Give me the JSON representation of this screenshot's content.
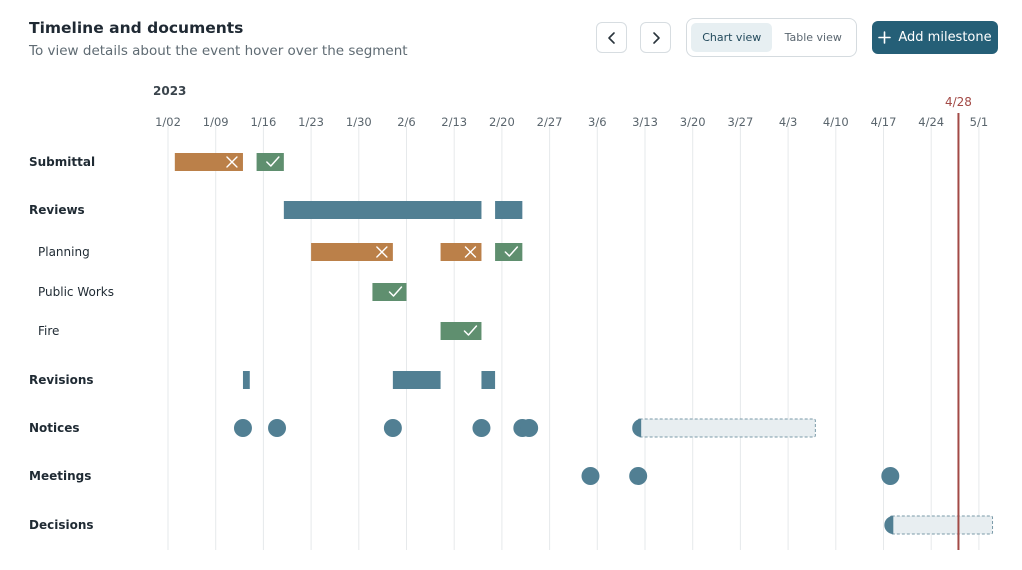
{
  "header": {
    "title": "Timeline and documents",
    "subtitle": "To view details about the event hover over the segment"
  },
  "toolbar": {
    "prev_icon": "chevron-left-icon",
    "next_icon": "chevron-right-icon",
    "views": [
      {
        "label": "Chart view",
        "active": true
      },
      {
        "label": "Table view",
        "active": false
      }
    ],
    "add_icon": "plus-icon",
    "add_label": "Add milestone"
  },
  "colors": {
    "rejected": "#bb8049",
    "approved": "#5f8f6f",
    "neutral": "#517f93",
    "pending_fill": "#e8eef1",
    "pending_border": "#7a9aa8",
    "today": "#a34a46",
    "grid": "#e6e9eb"
  },
  "chart_data": {
    "type": "timeline",
    "year_label": "2023",
    "ticks": [
      "1/02",
      "1/09",
      "1/16",
      "1/23",
      "1/30",
      "2/6",
      "2/13",
      "2/20",
      "2/27",
      "3/6",
      "3/13",
      "3/20",
      "3/27",
      "4/3",
      "4/10",
      "4/17",
      "4/24",
      "5/1"
    ],
    "tick_dates": [
      "2023-01-02",
      "2023-01-09",
      "2023-01-16",
      "2023-01-23",
      "2023-01-30",
      "2023-02-06",
      "2023-02-13",
      "2023-02-20",
      "2023-02-27",
      "2023-03-06",
      "2023-03-13",
      "2023-03-20",
      "2023-03-27",
      "2023-04-03",
      "2023-04-10",
      "2023-04-17",
      "2023-04-24",
      "2023-05-01"
    ],
    "today": {
      "label": "4/28",
      "date": "2023-04-28"
    },
    "rows": [
      {
        "label": "Submittal",
        "bold": true,
        "indent": false,
        "items": [
          {
            "kind": "bar",
            "status": "rejected",
            "start": "2023-01-03",
            "end": "2023-01-13"
          },
          {
            "kind": "bar",
            "status": "approved",
            "start": "2023-01-15",
            "end": "2023-01-19"
          }
        ]
      },
      {
        "label": "Reviews",
        "bold": true,
        "indent": false,
        "items": [
          {
            "kind": "bar",
            "status": "neutral",
            "start": "2023-01-19",
            "end": "2023-02-17"
          },
          {
            "kind": "bar",
            "status": "neutral",
            "start": "2023-02-19",
            "end": "2023-02-23"
          }
        ]
      },
      {
        "label": "Planning",
        "bold": false,
        "indent": true,
        "items": [
          {
            "kind": "bar",
            "status": "rejected",
            "start": "2023-01-23",
            "end": "2023-02-04"
          },
          {
            "kind": "bar",
            "status": "rejected",
            "start": "2023-02-11",
            "end": "2023-02-17"
          },
          {
            "kind": "bar",
            "status": "approved",
            "start": "2023-02-19",
            "end": "2023-02-23"
          }
        ]
      },
      {
        "label": "Public Works",
        "bold": false,
        "indent": true,
        "items": [
          {
            "kind": "bar",
            "status": "approved",
            "start": "2023-02-01",
            "end": "2023-02-06"
          }
        ]
      },
      {
        "label": "Fire",
        "bold": false,
        "indent": true,
        "items": [
          {
            "kind": "bar",
            "status": "approved",
            "start": "2023-02-11",
            "end": "2023-02-17"
          }
        ]
      },
      {
        "label": "Revisions",
        "bold": true,
        "indent": false,
        "items": [
          {
            "kind": "bar",
            "status": "neutral",
            "start": "2023-01-13",
            "end": "2023-01-14"
          },
          {
            "kind": "bar",
            "status": "neutral",
            "start": "2023-02-04",
            "end": "2023-02-11"
          },
          {
            "kind": "bar",
            "status": "neutral",
            "start": "2023-02-17",
            "end": "2023-02-19"
          }
        ]
      },
      {
        "label": "Notices",
        "bold": true,
        "indent": false,
        "items": [
          {
            "kind": "dot",
            "date": "2023-01-13"
          },
          {
            "kind": "dot",
            "date": "2023-01-18"
          },
          {
            "kind": "dot",
            "date": "2023-02-04"
          },
          {
            "kind": "dot",
            "date": "2023-02-17"
          },
          {
            "kind": "dot",
            "date": "2023-02-23"
          },
          {
            "kind": "dot",
            "date": "2023-02-24"
          },
          {
            "kind": "pending",
            "start": "2023-03-12",
            "end": "2023-04-07"
          }
        ]
      },
      {
        "label": "Meetings",
        "bold": true,
        "indent": false,
        "items": [
          {
            "kind": "dot",
            "date": "2023-03-05"
          },
          {
            "kind": "dot",
            "date": "2023-03-12"
          },
          {
            "kind": "dot",
            "date": "2023-04-18"
          }
        ]
      },
      {
        "label": "Decisions",
        "bold": true,
        "indent": false,
        "items": [
          {
            "kind": "pending",
            "start": "2023-04-18",
            "end": "2023-05-03"
          }
        ]
      }
    ]
  }
}
